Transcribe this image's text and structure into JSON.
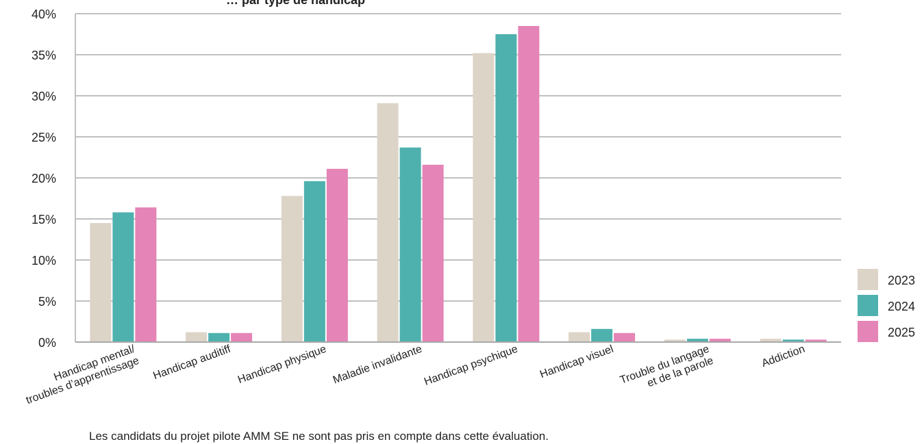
{
  "chart_data": {
    "type": "bar",
    "title": "",
    "xlabel": "",
    "ylabel": "",
    "ylim": [
      0,
      40
    ],
    "yticks": [
      0,
      5,
      10,
      15,
      20,
      25,
      30,
      35,
      40
    ],
    "ytick_labels": [
      "0%",
      "5%",
      "10%",
      "15%",
      "20%",
      "25%",
      "30%",
      "35%",
      "40%"
    ],
    "grid": true,
    "legend_position": "right",
    "categories": [
      [
        "Handicap mental/",
        "troubles d’apprentissage"
      ],
      [
        "Handicap auditiff"
      ],
      [
        "Handicap physique"
      ],
      [
        "Maladie invalidante"
      ],
      [
        "Handicap psychique"
      ],
      [
        "Handicap visuel"
      ],
      [
        "Trouble du langage",
        "et de la parole"
      ],
      [
        "Addiction"
      ]
    ],
    "series": [
      {
        "name": "2023",
        "color": "#ddd4c8",
        "values": [
          14.5,
          1.2,
          17.8,
          29.1,
          35.2,
          1.2,
          0.3,
          0.4
        ]
      },
      {
        "name": "2024",
        "color": "#4eb1ae",
        "values": [
          15.8,
          1.1,
          19.6,
          23.7,
          37.5,
          1.6,
          0.4,
          0.3
        ]
      },
      {
        "name": "2025",
        "color": "#e584b6",
        "values": [
          16.4,
          1.1,
          21.1,
          21.6,
          38.5,
          1.1,
          0.4,
          0.3
        ]
      }
    ]
  },
  "partial_title": "… par type de handicap",
  "footnote": "Les candidats du projet pilote AMM SE ne sont pas pris en compte dans cette évaluation."
}
